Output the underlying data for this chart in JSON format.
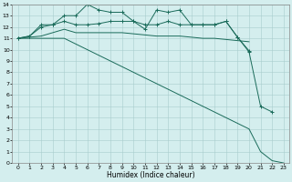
{
  "xlabel": "Humidex (Indice chaleur)",
  "bg_color": "#d4eeee",
  "grid_color": "#a8cccc",
  "line_color": "#1a6b5a",
  "xlim": [
    -0.5,
    23.5
  ],
  "ylim": [
    0,
    14
  ],
  "xticks": [
    0,
    1,
    2,
    3,
    4,
    5,
    6,
    7,
    8,
    9,
    10,
    11,
    12,
    13,
    14,
    15,
    16,
    17,
    18,
    19,
    20,
    21,
    22,
    23
  ],
  "yticks": [
    0,
    1,
    2,
    3,
    4,
    5,
    6,
    7,
    8,
    9,
    10,
    11,
    12,
    13,
    14
  ],
  "series": [
    {
      "x": [
        0,
        1,
        2,
        3,
        4,
        5,
        6,
        7,
        8,
        9,
        10,
        11,
        12,
        13,
        14,
        15,
        16,
        17,
        18,
        19,
        20,
        21,
        22
      ],
      "y": [
        11.0,
        11.2,
        12.2,
        12.2,
        13.0,
        13.0,
        14.0,
        13.5,
        13.3,
        13.3,
        12.5,
        11.8,
        13.5,
        13.3,
        13.5,
        12.2,
        12.2,
        12.2,
        12.5,
        11.1,
        9.8,
        5.0,
        4.5
      ],
      "marker": true
    },
    {
      "x": [
        0,
        1,
        2,
        3,
        4,
        5,
        6,
        7,
        8,
        9,
        10,
        11,
        12,
        13,
        14,
        15,
        16,
        17,
        18,
        19,
        20
      ],
      "y": [
        11.0,
        11.2,
        12.0,
        12.2,
        12.5,
        12.2,
        12.2,
        12.3,
        12.5,
        12.5,
        12.5,
        12.2,
        12.2,
        12.5,
        12.2,
        12.2,
        12.2,
        12.2,
        12.5,
        11.1,
        9.9
      ],
      "marker": true
    },
    {
      "x": [
        0,
        1,
        2,
        3,
        4,
        5,
        6,
        7,
        8,
        9,
        10,
        11,
        12,
        13,
        14,
        15,
        16,
        17,
        18,
        19,
        20
      ],
      "y": [
        11.0,
        11.1,
        11.2,
        11.5,
        11.8,
        11.5,
        11.5,
        11.5,
        11.5,
        11.5,
        11.4,
        11.3,
        11.2,
        11.2,
        11.2,
        11.1,
        11.0,
        11.0,
        10.9,
        10.8,
        10.7
      ],
      "marker": false
    },
    {
      "x": [
        0,
        1,
        2,
        3,
        4,
        5,
        6,
        7,
        8,
        9,
        10,
        11,
        12,
        13,
        14,
        15,
        16,
        17,
        18,
        19,
        20,
        21,
        22,
        23
      ],
      "y": [
        11.0,
        11.0,
        11.0,
        11.0,
        11.0,
        10.5,
        10.0,
        9.5,
        9.0,
        8.5,
        8.0,
        7.5,
        7.0,
        6.5,
        6.0,
        5.5,
        5.0,
        4.5,
        4.0,
        3.5,
        3.0,
        1.0,
        0.2,
        0.0
      ],
      "marker": false
    }
  ]
}
